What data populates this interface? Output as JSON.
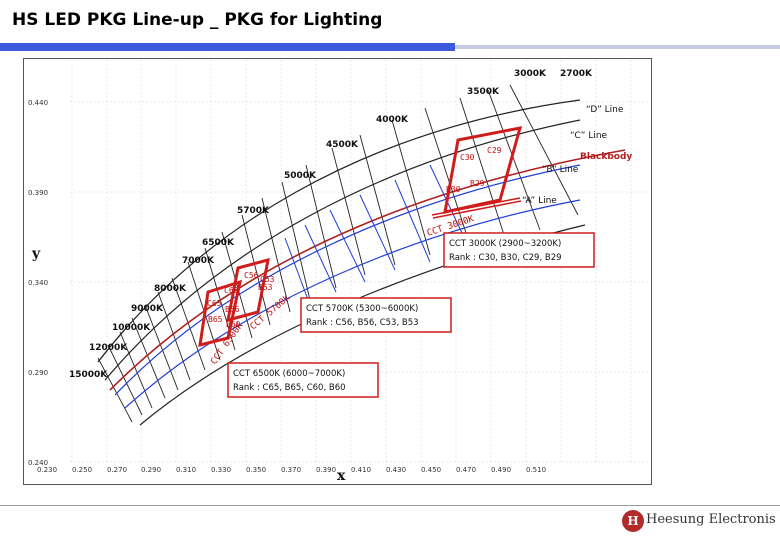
{
  "title": "HS LED PKG Line-up _ PKG for Lighting",
  "brand": "Heesung Electronis",
  "logo_glyph": "H",
  "axes": {
    "x_label": "x",
    "y_label": "y",
    "x_ticks": [
      "0.230",
      "0.250",
      "0.270",
      "0.290",
      "0.310",
      "0.330",
      "0.350",
      "0.370",
      "0.390",
      "0.410",
      "0.430",
      "0.450",
      "0.470",
      "0.490",
      "0.510"
    ],
    "y_ticks": [
      "0.440",
      "0.390",
      "0.340",
      "0.290",
      "0.240"
    ]
  },
  "cct_labels": [
    "2700K",
    "3000K",
    "3500K",
    "4000K",
    "4500K",
    "5000K",
    "5700K",
    "6500K",
    "7000K",
    "8000K",
    "9000K",
    "10000K",
    "12000K",
    "15000K"
  ],
  "line_labels": {
    "d": "“D” Line",
    "c": "“C” Line",
    "b": "“B” Line",
    "a": "“A” Line",
    "blackbody": "Blackbody"
  },
  "rank_labels": [
    "C30",
    "C29",
    "B30",
    "B29",
    "C56",
    "C53",
    "C60",
    "B53",
    "C65",
    "B56",
    "B65",
    "B60"
  ],
  "curved_labels": {
    "cct3000": "CCT 3000K",
    "cct5700": "CCT 5700K",
    "cct6500": "CCT 6500K"
  },
  "callouts": {
    "cct3000": {
      "line1": "CCT 3000K (2900~3200K)",
      "line2": "Rank : C30, B30, C29, B29"
    },
    "cct5700": {
      "line1": "CCT 5700K (5300~6000K)",
      "line2": "Rank : C56, B56, C53, B53"
    },
    "cct6500": {
      "line1": "CCT 6500K (6000~7000K)",
      "line2": "Rank : C65, B65, C60, B60"
    }
  },
  "colors": {
    "accent_blue": "#3b5bdb",
    "light_bar": "#c5cde6",
    "highlight_red": "#d11c1c",
    "line_blue": "#1f3fd6",
    "grid": "#222222",
    "logo": "#b22a2a"
  }
}
